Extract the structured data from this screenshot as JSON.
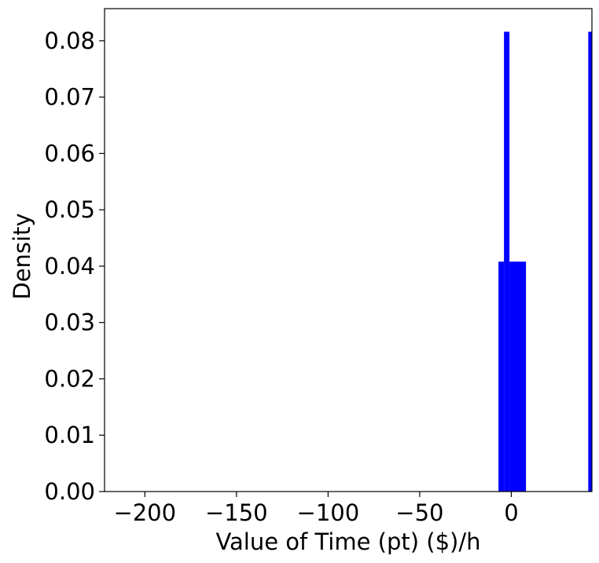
{
  "chart_data": {
    "type": "bar",
    "title": "",
    "xlabel": "Value of Time (pt) ($)/h",
    "ylabel": "Density",
    "xlim": [
      -222,
      44
    ],
    "ylim": [
      0,
      0.0857
    ],
    "grid": false,
    "legend": "none",
    "bar_color": "#0000ff",
    "xticks": [
      -200,
      -150,
      -100,
      -50,
      0
    ],
    "xtick_labels": [
      "−200",
      "−150",
      "−100",
      "−50",
      "0"
    ],
    "yticks": [
      0.0,
      0.01,
      0.02,
      0.03,
      0.04,
      0.05,
      0.06,
      0.07,
      0.08
    ],
    "ytick_labels": [
      "0.00",
      "0.01",
      "0.02",
      "0.03",
      "0.04",
      "0.05",
      "0.06",
      "0.07",
      "0.08"
    ],
    "bins": [
      {
        "x0": -7.0,
        "x1": -4.0,
        "value": 0.0408
      },
      {
        "x0": -4.0,
        "x1": -1.0,
        "value": 0.0816
      },
      {
        "x0": -1.0,
        "x1": 8.0,
        "value": 0.0408
      },
      {
        "x0": 42.0,
        "x1": 44.0,
        "value": 0.0816
      }
    ]
  }
}
